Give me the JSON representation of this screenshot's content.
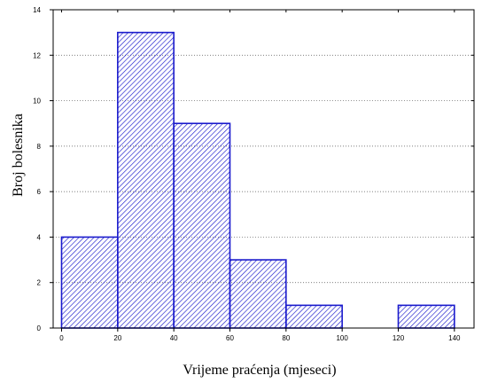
{
  "chart_data": {
    "type": "bar",
    "title": "",
    "xlabel": "Vrijeme praćenja (mjeseci)",
    "ylabel": "Broj bolesnika",
    "xlim": [
      -3,
      147
    ],
    "ylim": [
      0,
      14
    ],
    "x_ticks": [
      "0",
      "20",
      "40",
      "60",
      "80",
      "100",
      "120",
      "140"
    ],
    "y_ticks": [
      "0",
      "2",
      "4",
      "6",
      "8",
      "10",
      "12",
      "14"
    ],
    "bins": [
      {
        "from": 0,
        "to": 20,
        "value": 4
      },
      {
        "from": 20,
        "to": 40,
        "value": 13
      },
      {
        "from": 40,
        "to": 60,
        "value": 9
      },
      {
        "from": 60,
        "to": 80,
        "value": 3
      },
      {
        "from": 80,
        "to": 100,
        "value": 1
      },
      {
        "from": 100,
        "to": 120,
        "value": 0
      },
      {
        "from": 120,
        "to": 140,
        "value": 1
      }
    ],
    "grid": "horizontal dotted",
    "colors": {
      "bar_stroke": "#1a1acc",
      "hatch": "#1a1acc"
    }
  }
}
